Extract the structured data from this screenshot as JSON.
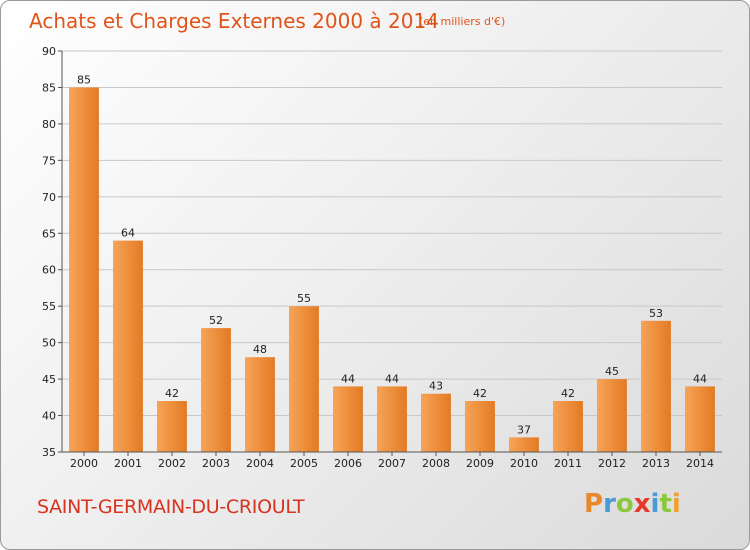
{
  "header": {
    "title": "Achats et Charges Externes 2000 à 2014",
    "unit": "(en milliers d'€)"
  },
  "footer": {
    "commune": "SAINT-GERMAIN-DU-CRIOULT",
    "logo_letters": [
      "P",
      "r",
      "o",
      "x",
      "i",
      "t",
      "i"
    ],
    "logo_colors": [
      "#e8882a",
      "#4a9ad8",
      "#8cc83c",
      "#e8382a",
      "#4a9ad8",
      "#8cc83c",
      "#f0a030"
    ]
  },
  "colors": {
    "bar_light": "#f6a458",
    "bar_dark": "#e37a22",
    "grid": "#c8c8c8",
    "axis": "#555555"
  },
  "chart_data": {
    "type": "bar",
    "categories": [
      "2000",
      "2001",
      "2002",
      "2003",
      "2004",
      "2005",
      "2006",
      "2007",
      "2008",
      "2009",
      "2010",
      "2011",
      "2012",
      "2013",
      "2014"
    ],
    "values": [
      85,
      64,
      42,
      52,
      48,
      55,
      44,
      44,
      43,
      42,
      37,
      42,
      45,
      53,
      44
    ],
    "title": "Achats et Charges Externes 2000 à 2014",
    "xlabel": "",
    "ylabel": "",
    "ylim": [
      35,
      90
    ],
    "yticks": [
      35,
      40,
      45,
      50,
      55,
      60,
      65,
      70,
      75,
      80,
      85,
      90
    ],
    "grid": "horizontal",
    "data_labels": true
  }
}
